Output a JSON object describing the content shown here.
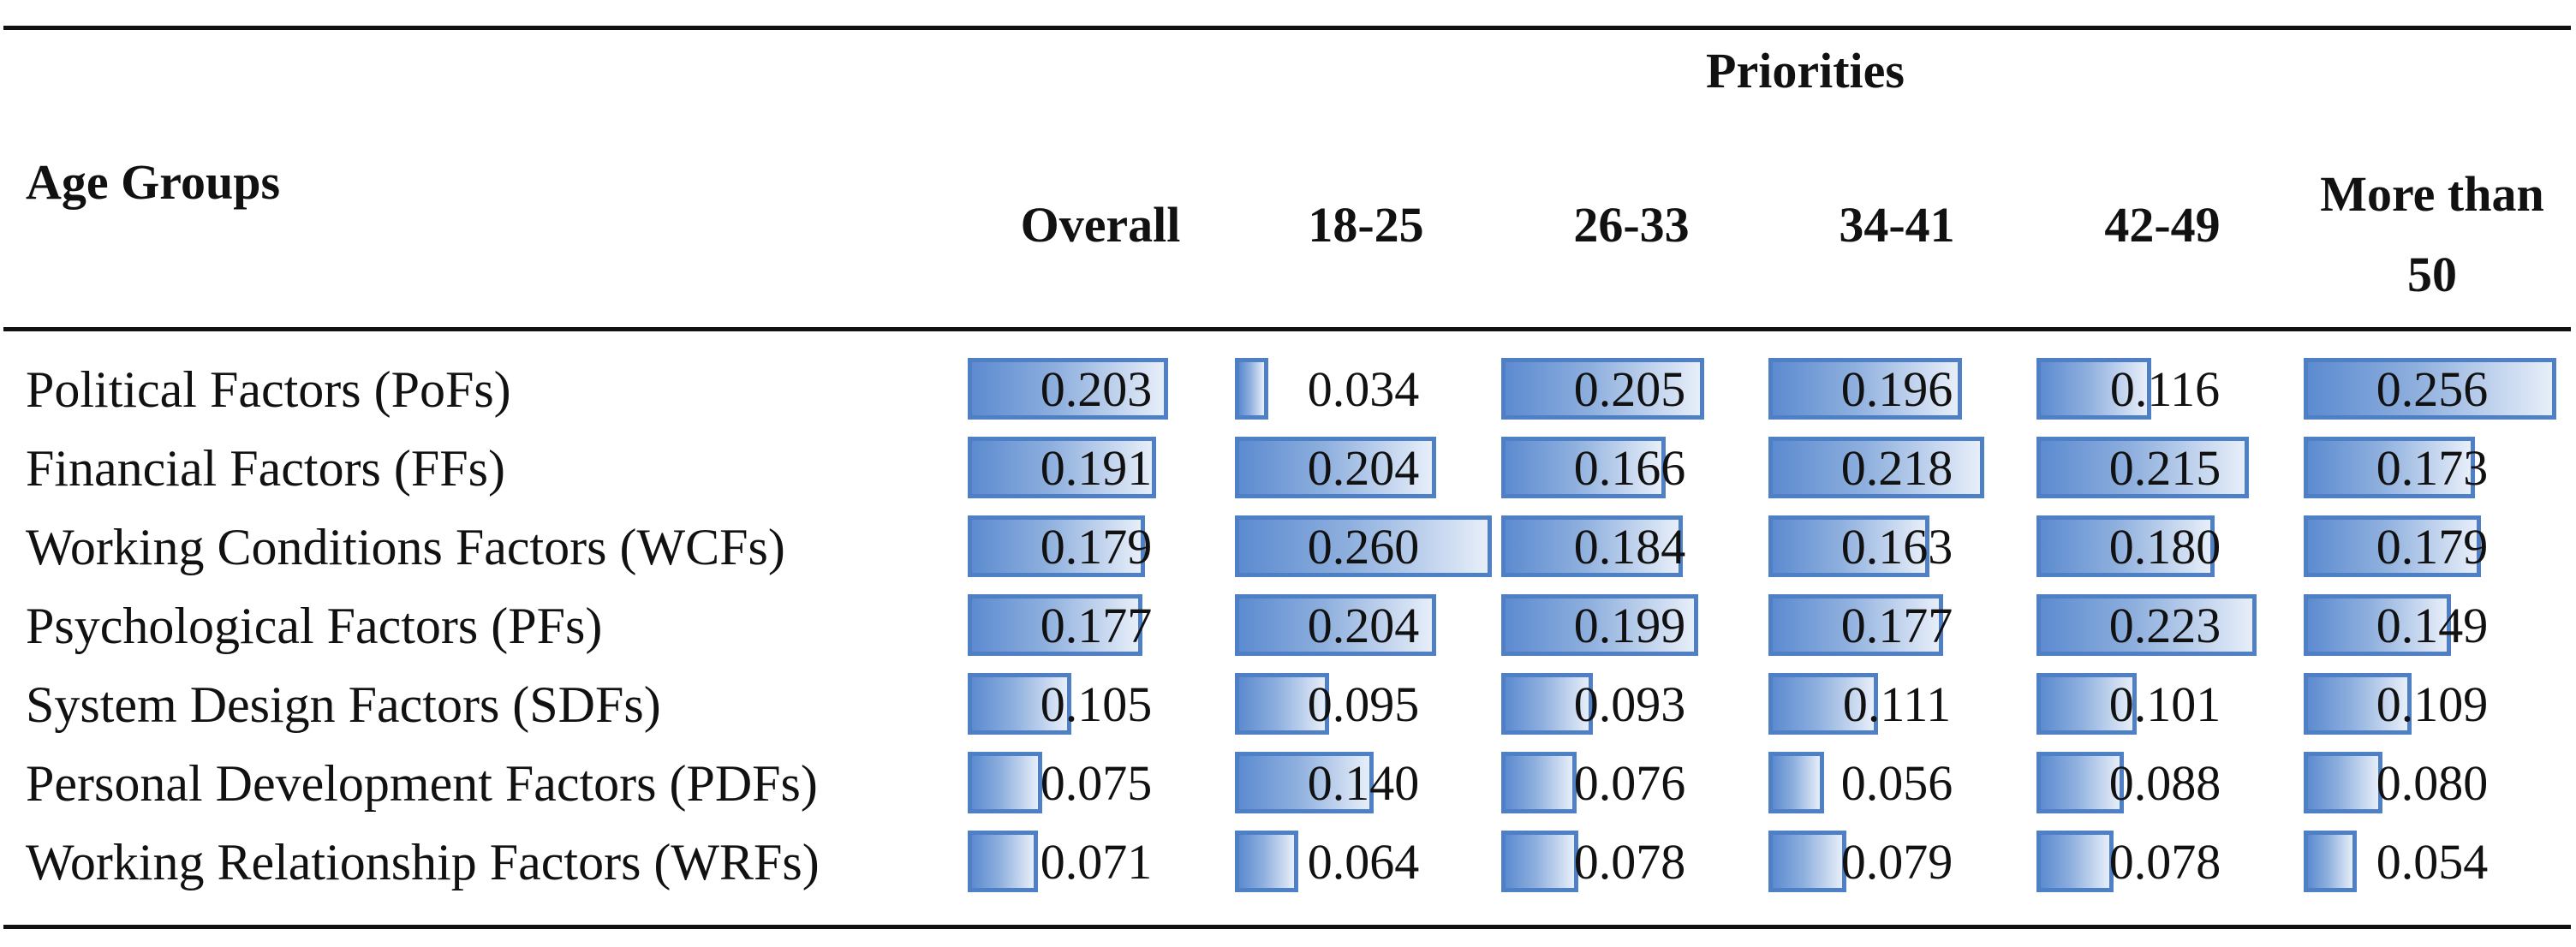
{
  "chart_data": {
    "type": "table",
    "header": {
      "row_header_label": "Age Groups",
      "group_label": "Priorities"
    },
    "columns": [
      "Overall",
      "18-25",
      "26-33",
      "34-41",
      "42-49",
      "More than 50"
    ],
    "rows": [
      {
        "label": "Political Factors (PoFs)",
        "values": [
          "0.203",
          "0.034",
          "0.205",
          "0.196",
          "0.116",
          "0.256"
        ]
      },
      {
        "label": "Financial Factors (FFs)",
        "values": [
          "0.191",
          "0.204",
          "0.166",
          "0.218",
          "0.215",
          "0.173"
        ]
      },
      {
        "label": "Working Conditions Factors (WCFs)",
        "values": [
          "0.179",
          "0.260",
          "0.184",
          "0.163",
          "0.180",
          "0.179"
        ]
      },
      {
        "label": "Psychological Factors (PFs)",
        "values": [
          "0.177",
          "0.204",
          "0.199",
          "0.177",
          "0.223",
          "0.149"
        ]
      },
      {
        "label": "System Design Factors (SDFs)",
        "values": [
          "0.105",
          "0.095",
          "0.093",
          "0.111",
          "0.101",
          "0.109"
        ]
      },
      {
        "label": "Personal Development Factors (PDFs)",
        "values": [
          "0.075",
          "0.140",
          "0.076",
          "0.056",
          "0.088",
          "0.080"
        ]
      },
      {
        "label": "Working Relationship Factors (WRFs)",
        "values": [
          "0.071",
          "0.064",
          "0.078",
          "0.079",
          "0.078",
          "0.054"
        ]
      }
    ],
    "data_bars": {
      "style": "gradient fill with border",
      "color": "#4f7fc4",
      "scale_max": 0.26
    }
  }
}
